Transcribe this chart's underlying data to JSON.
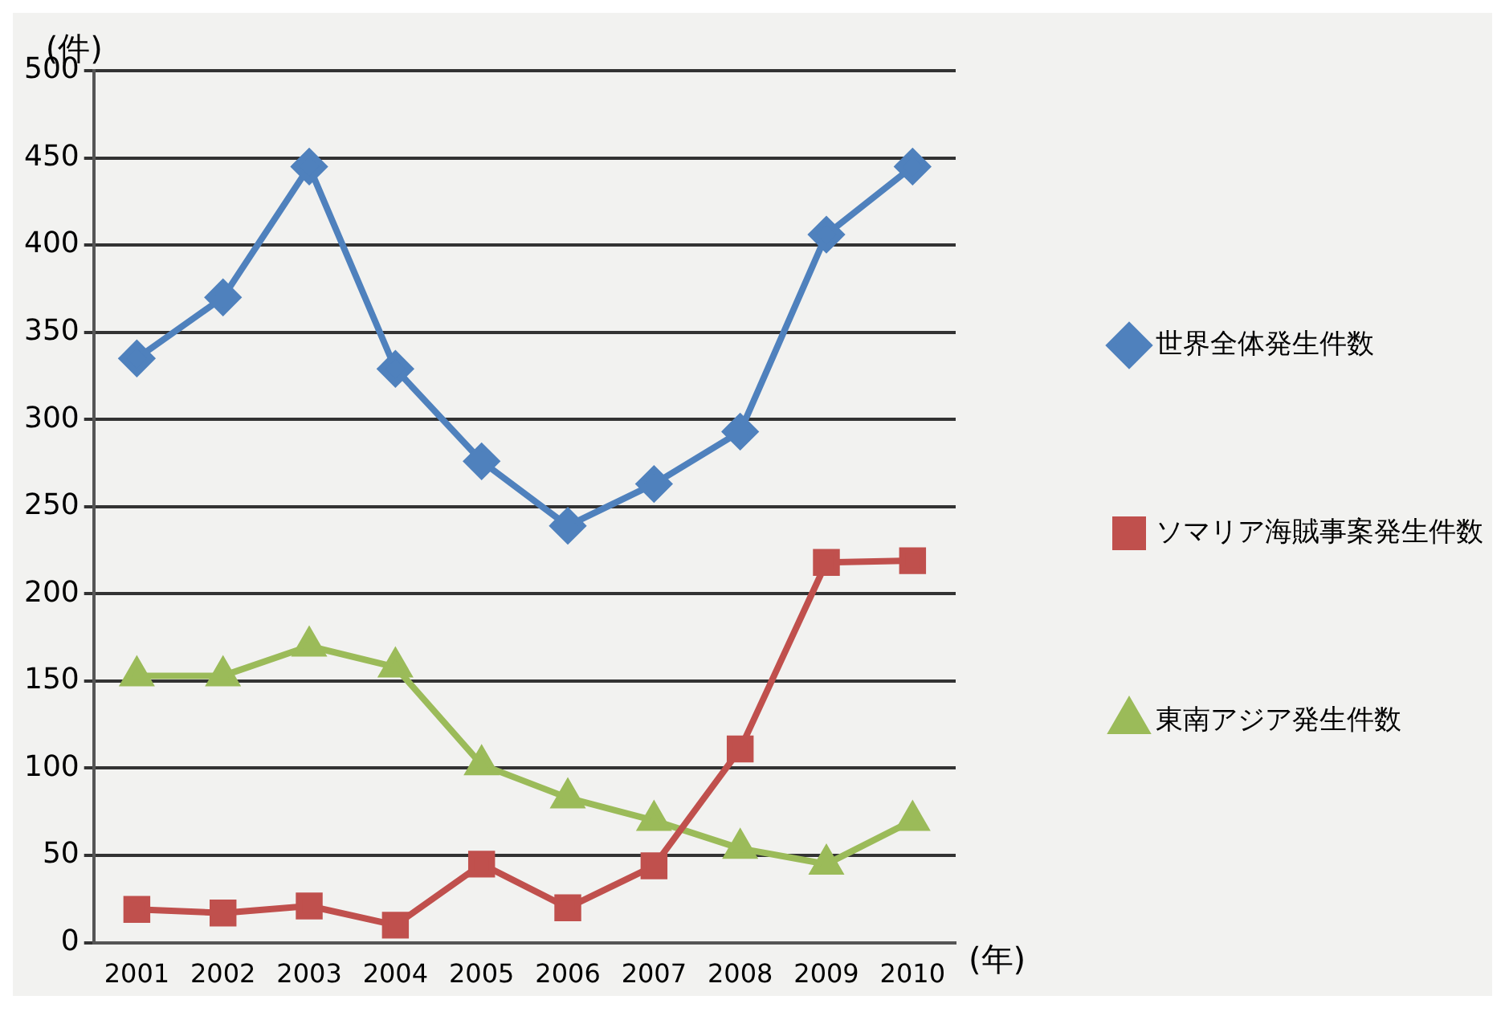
{
  "chart_data": {
    "type": "line",
    "xlabel": "(年)",
    "ylabel": "(件)",
    "categories": [
      "2001",
      "2002",
      "2003",
      "2004",
      "2005",
      "2006",
      "2007",
      "2008",
      "2009",
      "2010"
    ],
    "series": [
      {
        "name": "世界全体発生件数",
        "color": "#4f81bd",
        "marker": "diamond",
        "values": [
          335,
          370,
          445,
          329,
          276,
          239,
          263,
          293,
          406,
          445
        ]
      },
      {
        "name": "ソマリア海賊事案発生件数",
        "color": "#c0504d",
        "marker": "square",
        "values": [
          19,
          17,
          21,
          10,
          45,
          20,
          44,
          111,
          218,
          219
        ]
      },
      {
        "name": "東南アジア発生件数",
        "color": "#9bbb59",
        "marker": "triangle",
        "values": [
          153,
          153,
          170,
          158,
          102,
          83,
          70,
          54,
          45,
          70
        ]
      }
    ],
    "ylim": [
      0,
      500
    ],
    "yticks": [
      0,
      50,
      100,
      150,
      200,
      250,
      300,
      350,
      400,
      450,
      500
    ],
    "grid": "y",
    "legend": "right"
  }
}
